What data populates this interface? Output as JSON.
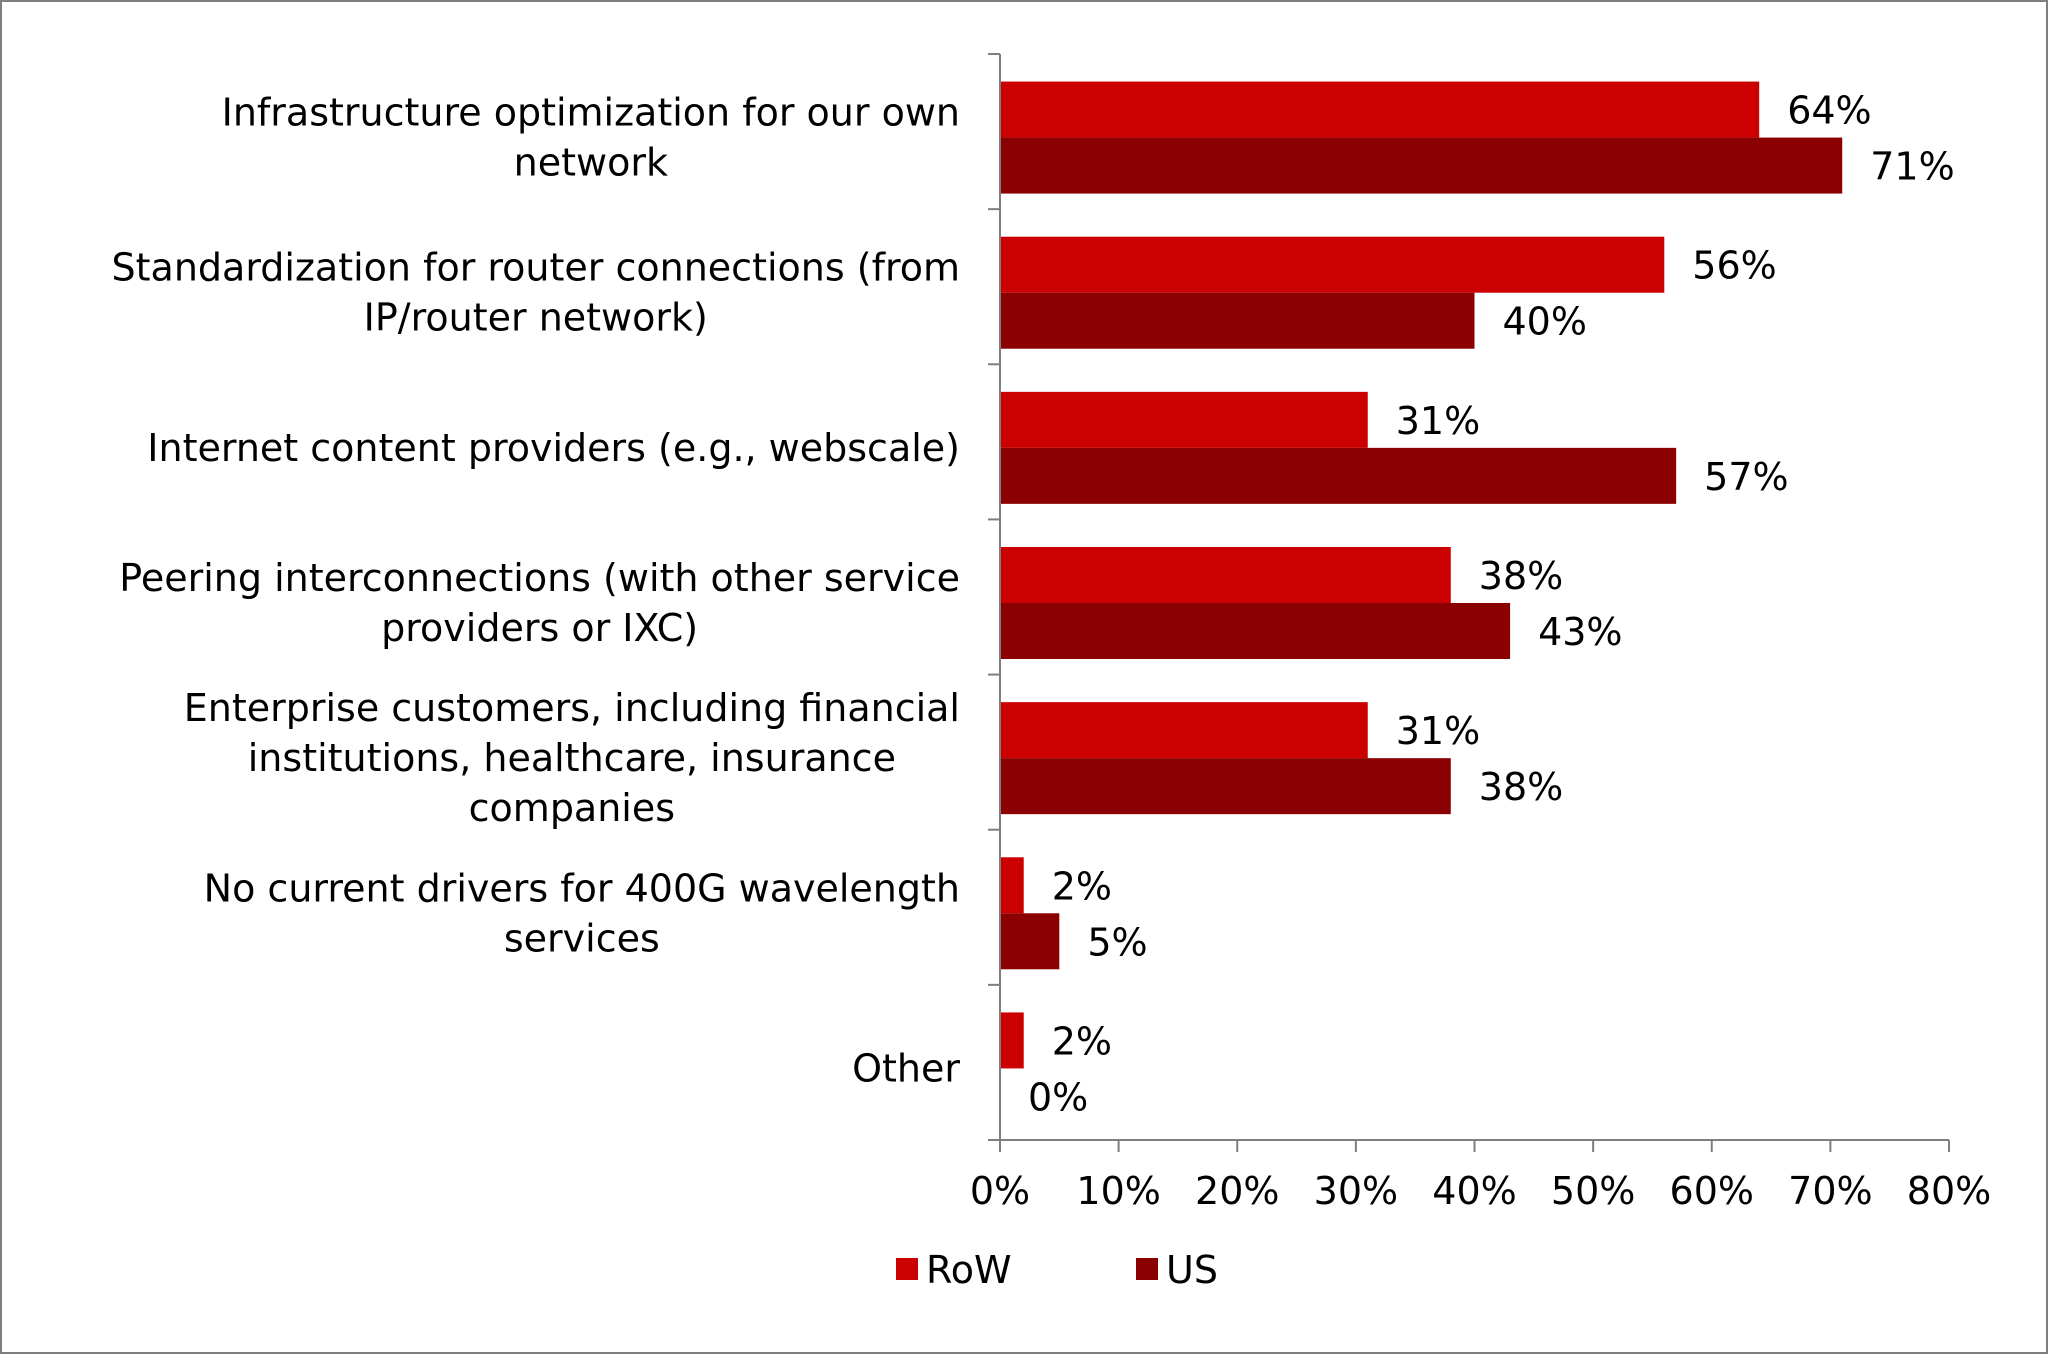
{
  "chart_data": {
    "type": "bar",
    "orientation": "horizontal",
    "categories": [
      [
        "Infrastructure optimization for our own",
        "network"
      ],
      [
        "Standardization for router connections (from",
        "IP/router network)"
      ],
      [
        "Internet content providers (e.g., webscale)"
      ],
      [
        "Peering interconnections (with other service",
        "providers or IXC)"
      ],
      [
        "Enterprise customers, including financial",
        "institutions, healthcare, insurance",
        "companies"
      ],
      [
        "No current drivers for 400G wavelength",
        "services"
      ],
      [
        "Other"
      ]
    ],
    "series": [
      {
        "name": "RoW",
        "color": "#cc0000",
        "values": [
          64,
          56,
          31,
          38,
          31,
          2,
          2
        ],
        "labels": [
          "64%",
          "56%",
          "31%",
          "38%",
          "31%",
          "2%",
          "2%"
        ]
      },
      {
        "name": "US",
        "color": "#8b0000",
        "values": [
          71,
          40,
          57,
          43,
          38,
          5,
          0
        ],
        "labels": [
          "71%",
          "40%",
          "57%",
          "43%",
          "38%",
          "5%",
          "0%"
        ]
      }
    ],
    "xlim": [
      0,
      80
    ],
    "xticks": [
      "0%",
      "10%",
      "20%",
      "30%",
      "40%",
      "50%",
      "60%",
      "70%",
      "80%"
    ],
    "grid": false,
    "legend": "bottom"
  }
}
